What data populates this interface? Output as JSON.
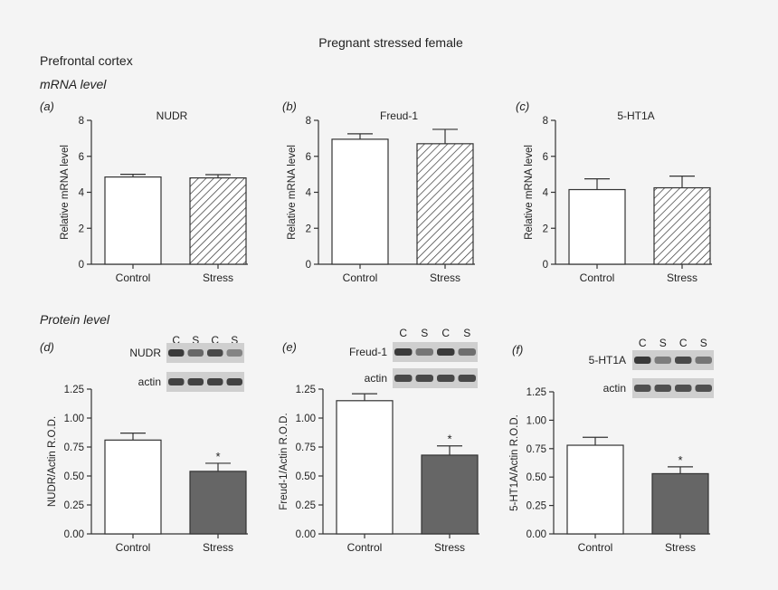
{
  "figure": {
    "title": "Pregnant stressed female",
    "region": "Prefrontal cortex",
    "section_mrna": "mRNA level",
    "section_protein": "Protein level"
  },
  "colors": {
    "control_fill": "#ffffff",
    "stress_protein_fill": "#666666",
    "stroke": "#333333",
    "blot_band": "#3a3a3a",
    "blot_bg": "#cfcfcf"
  },
  "chart_data": [
    {
      "panel": "(a)",
      "type": "bar",
      "title": "NUDR",
      "ylabel": "Relative mRNA level",
      "ylim": [
        0,
        8
      ],
      "yticks": [
        "0",
        "2",
        "4",
        "6",
        "8"
      ],
      "categories": [
        "Control",
        "Stress"
      ],
      "values": [
        4.85,
        4.8
      ],
      "errors": [
        0.15,
        0.18
      ],
      "fills": [
        "white",
        "hatch"
      ],
      "significance": [
        "",
        ""
      ]
    },
    {
      "panel": "(b)",
      "type": "bar",
      "title": "Freud-1",
      "ylabel": "Relative mRNA level",
      "ylim": [
        0,
        8
      ],
      "yticks": [
        "0",
        "2",
        "4",
        "6",
        "8"
      ],
      "categories": [
        "Control",
        "Stress"
      ],
      "values": [
        6.95,
        6.7
      ],
      "errors": [
        0.3,
        0.8
      ],
      "fills": [
        "white",
        "hatch"
      ],
      "significance": [
        "",
        ""
      ]
    },
    {
      "panel": "(c)",
      "type": "bar",
      "title": "5-HT1A",
      "ylabel": "Relative mRNA level",
      "ylim": [
        0,
        8
      ],
      "yticks": [
        "0",
        "2",
        "4",
        "6",
        "8"
      ],
      "categories": [
        "Control",
        "Stress"
      ],
      "values": [
        4.15,
        4.25
      ],
      "errors": [
        0.6,
        0.65
      ],
      "fills": [
        "white",
        "hatch"
      ],
      "significance": [
        "",
        ""
      ]
    },
    {
      "panel": "(d)",
      "type": "bar",
      "title": "",
      "ylabel": "NUDR/Actin R.O.D.",
      "ylim": [
        0,
        1.25
      ],
      "yticks": [
        "0.00",
        "0.25",
        "0.50",
        "0.75",
        "1.00",
        "1.25"
      ],
      "categories": [
        "Control",
        "Stress"
      ],
      "values": [
        0.81,
        0.54
      ],
      "errors": [
        0.06,
        0.07
      ],
      "fills": [
        "white",
        "gray"
      ],
      "significance": [
        "",
        "*"
      ],
      "blot": {
        "lanes": [
          "C",
          "S",
          "C",
          "S"
        ],
        "protein": "NUDR",
        "control": "actin",
        "protein_intensity": [
          1.0,
          0.7,
          0.9,
          0.5
        ],
        "actin_intensity": [
          0.95,
          0.95,
          0.95,
          0.95
        ]
      }
    },
    {
      "panel": "(e)",
      "type": "bar",
      "title": "",
      "ylabel": "Freud-1/Actin R.O.D.",
      "ylim": [
        0,
        1.25
      ],
      "yticks": [
        "0.00",
        "0.25",
        "0.50",
        "0.75",
        "1.00",
        "1.25"
      ],
      "categories": [
        "Control",
        "Stress"
      ],
      "values": [
        1.15,
        0.68
      ],
      "errors": [
        0.06,
        0.08
      ],
      "fills": [
        "white",
        "gray"
      ],
      "significance": [
        "",
        "*"
      ],
      "blot": {
        "lanes": [
          "C",
          "S",
          "C",
          "S"
        ],
        "protein": "Freud-1",
        "control": "actin",
        "protein_intensity": [
          1.0,
          0.6,
          1.0,
          0.65
        ],
        "actin_intensity": [
          0.9,
          0.9,
          0.9,
          0.9
        ]
      }
    },
    {
      "panel": "(f)",
      "type": "bar",
      "title": "",
      "ylabel": "5-HT1A/Actin R.O.D.",
      "ylim": [
        0,
        1.25
      ],
      "yticks": [
        "0.00",
        "0.25",
        "0.50",
        "0.75",
        "1.00",
        "1.25"
      ],
      "categories": [
        "Control",
        "Stress"
      ],
      "values": [
        0.78,
        0.53
      ],
      "errors": [
        0.07,
        0.06
      ],
      "fills": [
        "white",
        "gray"
      ],
      "significance": [
        "",
        "*"
      ],
      "blot": {
        "lanes": [
          "C",
          "S",
          "C",
          "S"
        ],
        "protein": "5-HT1A",
        "control": "actin",
        "protein_intensity": [
          1.0,
          0.55,
          0.9,
          0.6
        ],
        "actin_intensity": [
          0.85,
          0.85,
          0.85,
          0.85
        ]
      }
    }
  ]
}
